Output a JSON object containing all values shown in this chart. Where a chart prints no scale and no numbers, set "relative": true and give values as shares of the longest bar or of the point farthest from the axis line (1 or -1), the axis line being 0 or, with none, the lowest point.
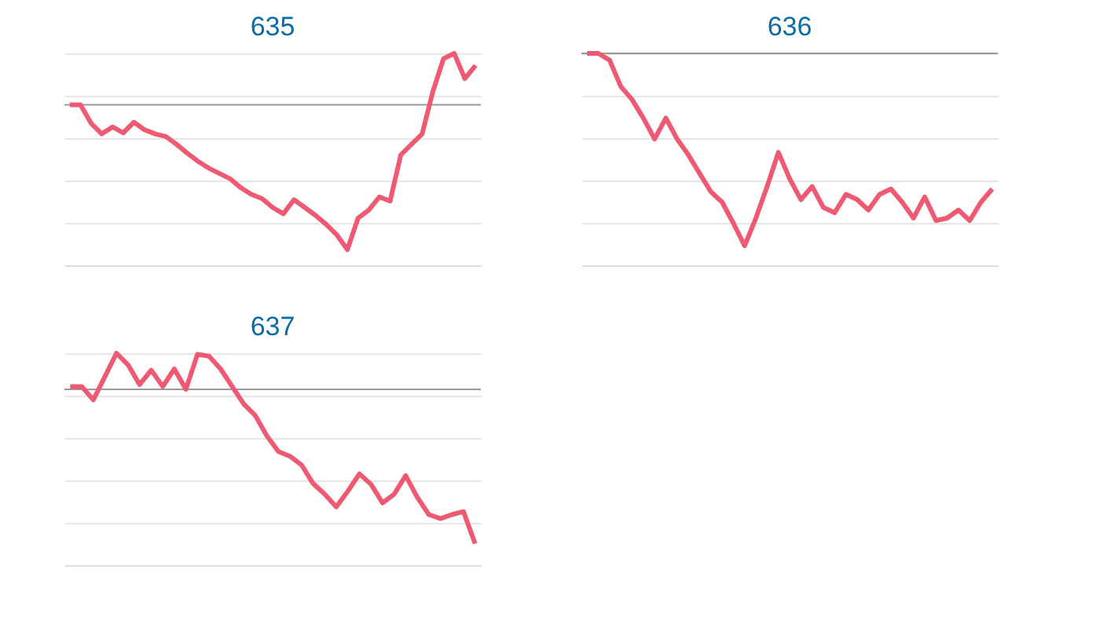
{
  "chart_data": [
    {
      "type": "line",
      "title": "635",
      "relative": true,
      "grid": "y",
      "categories": [
        null,
        null,
        null,
        null,
        null,
        null,
        null,
        null,
        null,
        null,
        null,
        null,
        null,
        null,
        null,
        null,
        null,
        null,
        null,
        null,
        null,
        null,
        null,
        null,
        null,
        null,
        null,
        null,
        null,
        null,
        null,
        null,
        null,
        null,
        null,
        null,
        null,
        null,
        null
      ],
      "series": [
        {
          "color": "#ef5a72",
          "values": [
            0.757,
            0.757,
            0.67,
            0.62,
            0.653,
            0.625,
            0.675,
            0.64,
            0.62,
            0.608,
            0.571,
            0.529,
            0.491,
            0.459,
            0.434,
            0.409,
            0.367,
            0.335,
            0.315,
            0.273,
            0.243,
            0.31,
            0.273,
            0.236,
            0.194,
            0.144,
            0.074,
            0.223,
            0.261,
            0.323,
            0.303,
            0.521,
            0.571,
            0.62,
            0.819,
            0.975,
            1,
            0.881,
            0.943
          ]
        }
      ],
      "ref_lines": [
        {
          "axis": "y",
          "value": 0.757,
          "color": "#999999"
        }
      ]
    },
    {
      "type": "line",
      "title": "636",
      "relative": true,
      "grid": "y",
      "categories": [
        null,
        null,
        null,
        null,
        null,
        null,
        null,
        null,
        null,
        null,
        null,
        null,
        null,
        null,
        null,
        null,
        null,
        null,
        null,
        null,
        null,
        null,
        null,
        null,
        null,
        null,
        null,
        null,
        null,
        null,
        null,
        null,
        null,
        null,
        null,
        null,
        null
      ],
      "series": [
        {
          "color": "#ef5a72",
          "values": [
            1,
            1,
            0.968,
            0.844,
            0.782,
            0.695,
            0.596,
            0.695,
            0.596,
            0.521,
            0.434,
            0.347,
            0.298,
            0.199,
            0.092,
            0.223,
            0.372,
            0.533,
            0.409,
            0.31,
            0.372,
            0.273,
            0.248,
            0.335,
            0.31,
            0.261,
            0.335,
            0.36,
            0.298,
            0.223,
            0.323,
            0.211,
            0.223,
            0.261,
            0.211,
            0.298,
            0.36
          ]
        }
      ],
      "ref_lines": [
        {
          "axis": "y",
          "value": 1,
          "color": "#999999"
        }
      ]
    },
    {
      "type": "line",
      "title": "637",
      "relative": true,
      "grid": "y",
      "categories": [
        null,
        null,
        null,
        null,
        null,
        null,
        null,
        null,
        null,
        null,
        null,
        null,
        null,
        null,
        null,
        null,
        null,
        null,
        null,
        null,
        null,
        null,
        null,
        null,
        null,
        null,
        null,
        null,
        null,
        null,
        null,
        null,
        null,
        null,
        null,
        null
      ],
      "series": [
        {
          "color": "#ef5a72",
          "values": [
            0.843,
            0.843,
            0.78,
            0.89,
            1,
            0.945,
            0.852,
            0.92,
            0.843,
            0.926,
            0.83,
            0.995,
            0.986,
            0.926,
            0.843,
            0.761,
            0.706,
            0.61,
            0.536,
            0.514,
            0.473,
            0.385,
            0.335,
            0.275,
            0.349,
            0.431,
            0.382,
            0.294,
            0.335,
            0.423,
            0.321,
            0.239,
            0.22,
            0.239,
            0.253,
            0.102
          ]
        }
      ],
      "ref_lines": [
        {
          "axis": "y",
          "value": 0.83,
          "color": "#999999"
        }
      ]
    }
  ]
}
